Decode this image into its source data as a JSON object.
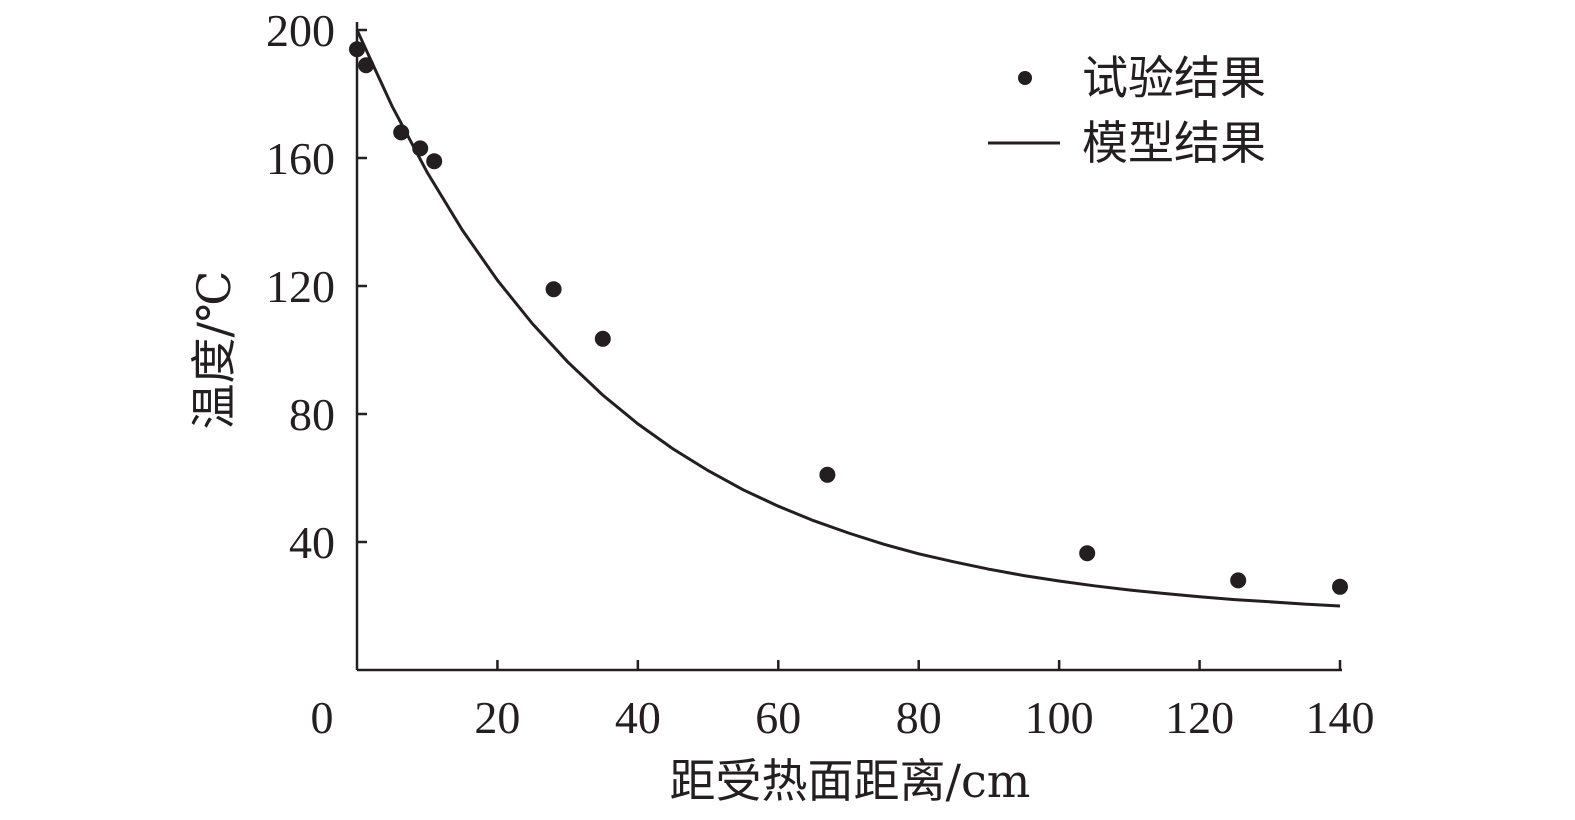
{
  "chart_data": {
    "type": "scatter",
    "title": "",
    "xlabel": "距受热面距离/cm",
    "ylabel": "温度/℃",
    "xlim": [
      0,
      140
    ],
    "ylim": [
      0,
      200
    ],
    "x_ticks": [
      0,
      20,
      40,
      60,
      80,
      100,
      120,
      140
    ],
    "y_ticks": [
      40,
      80,
      120,
      160,
      200
    ],
    "grid": false,
    "legend_position": "top-right",
    "colors": {
      "marker": "#231f20",
      "line": "#231f20",
      "axis": "#231f20"
    },
    "series": [
      {
        "name": "试验结果",
        "type": "scatter",
        "x": [
          0,
          1.3,
          6.3,
          9,
          11,
          28,
          35,
          67,
          104,
          125.5,
          140
        ],
        "y": [
          194,
          189,
          168,
          163,
          159,
          119,
          103.5,
          61,
          36.5,
          28,
          26
        ]
      },
      {
        "name": "模型结果",
        "type": "line",
        "x": [
          0,
          5,
          10,
          15,
          20,
          25,
          30,
          35,
          40,
          45,
          50,
          55,
          60,
          65,
          70,
          75,
          80,
          85,
          90,
          95,
          100,
          105,
          110,
          115,
          120,
          125,
          130,
          135,
          140
        ],
        "y": [
          200,
          176.2,
          155.5,
          137.5,
          121.8,
          108.2,
          96.3,
          85.9,
          76.9,
          69.1,
          62.3,
          56.3,
          51.2,
          46.7,
          42.8,
          39.3,
          36.3,
          33.8,
          31.5,
          29.5,
          27.8,
          26.3,
          25.0,
          23.9,
          22.9,
          22.0,
          21.3,
          20.6,
          20.0
        ]
      }
    ]
  }
}
